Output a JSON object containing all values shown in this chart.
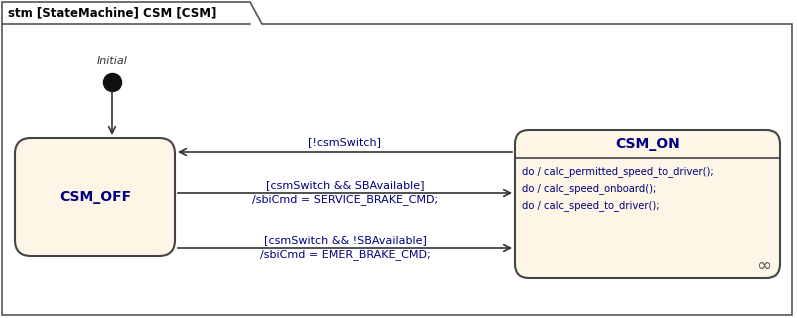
{
  "title": "stm [StateMachine] CSM [CSM]",
  "bg_color": "#ffffff",
  "border_color": "#555555",
  "state_fill": "#fdf5e6",
  "state_edge": "#444444",
  "text_color": "#000080",
  "label_color": "#000080",
  "csm_off_label": "CSM_OFF",
  "csm_on_label": "CSM_ON",
  "initial_label": "Initial",
  "csm_on_body": "do / calc_permitted_speed_to_driver();\ndo / calc_speed_onboard();\ndo / calc_speed_to_driver();",
  "arrow_color": "#333333",
  "transition1_label": "[!csmSwitch]",
  "transition2_label_1": "[csmSwitch && SBAvailable]",
  "transition2_label_2": "/sbiCmd = SERVICE_BRAKE_CMD;",
  "transition3_label_1": "[csmSwitch && !SBAvailable]",
  "transition3_label_2": "/sbiCmd = EMER_BRAKE_CMD;",
  "infinity_symbol": "∞",
  "figsize": [
    7.97,
    3.18
  ],
  "dpi": 100
}
